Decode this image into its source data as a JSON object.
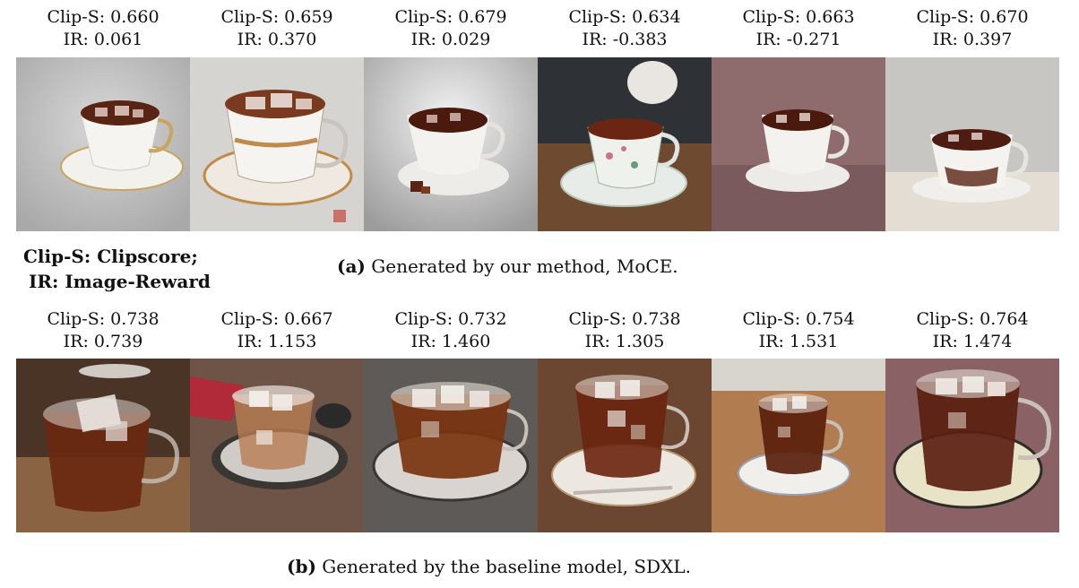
{
  "row_a": {
    "labels": [
      {
        "clip": "Clip-S: 0.660",
        "ir": "IR: 0.061"
      },
      {
        "clip": "Clip-S: 0.659",
        "ir": "IR: 0.370"
      },
      {
        "clip": "Clip-S: 0.679",
        "ir": "IR: 0.029"
      },
      {
        "clip": "Clip-S: 0.634",
        "ir": "IR: -0.383"
      },
      {
        "clip": "Clip-S: 0.663",
        "ir": "IR: -0.271"
      },
      {
        "clip": "Clip-S: 0.670",
        "ir": "IR: 0.397"
      }
    ],
    "caption_tag": "(a)",
    "caption_text": "Generated by our method, MoCE."
  },
  "legend": {
    "line1": "Clip-S: Clipscore;",
    "line2": "IR: Image-Reward"
  },
  "row_b": {
    "labels": [
      {
        "clip": "Clip-S: 0.738",
        "ir": "IR: 0.739"
      },
      {
        "clip": "Clip-S: 0.667",
        "ir": "IR: 1.153"
      },
      {
        "clip": "Clip-S: 0.732",
        "ir": "IR: 1.460"
      },
      {
        "clip": "Clip-S: 0.738",
        "ir": "IR: 1.305"
      },
      {
        "clip": "Clip-S: 0.754",
        "ir": "IR: 1.531"
      },
      {
        "clip": "Clip-S: 0.764",
        "ir": "IR: 1.474"
      }
    ],
    "caption_tag": "(b)",
    "caption_text": "Generated by the baseline model, SDXL."
  },
  "colors": {
    "tea": "#4a1c10",
    "porcelain": "#f2f0ec",
    "glass_tea": "#6b2a0f"
  },
  "icons": {
    "row_a_images": [
      "porcelain-teacup-icon",
      "porcelain-teacup-icon",
      "porcelain-teacup-icon",
      "porcelain-teacup-icon",
      "porcelain-teacup-icon",
      "porcelain-teacup-icon"
    ],
    "row_b_images": [
      "glass-teacup-icon",
      "glass-teacup-icon",
      "glass-teacup-icon",
      "glass-teacup-icon",
      "glass-teacup-icon",
      "glass-teacup-icon"
    ]
  }
}
